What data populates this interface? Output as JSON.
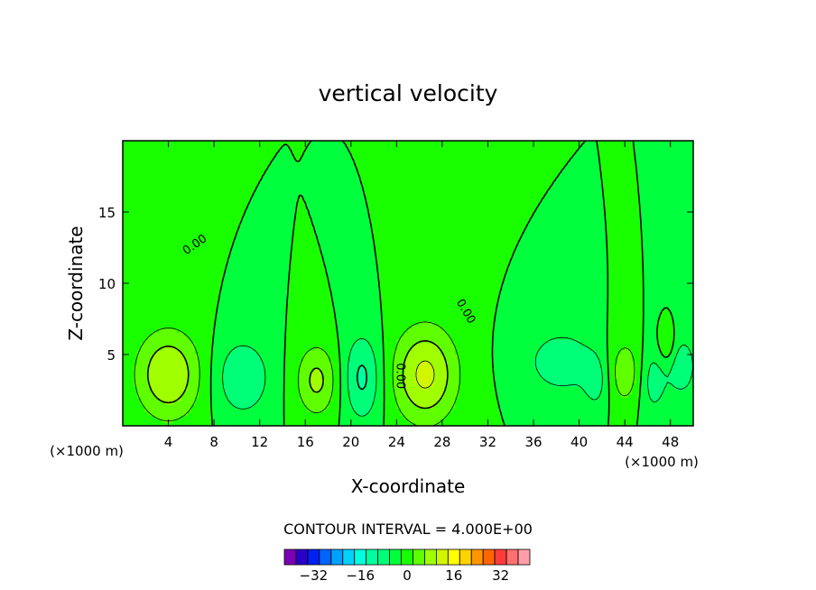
{
  "chart_data": {
    "type": "heatmap",
    "title": "vertical velocity",
    "xlabel": "X-coordinate",
    "ylabel": "Z-coordinate",
    "x_unit_label_left": "(×1000 m)",
    "x_unit_label_right": "(×1000 m)",
    "xlim": [
      0,
      50
    ],
    "ylim": [
      0,
      20
    ],
    "x_ticks": [
      4,
      8,
      12,
      16,
      20,
      24,
      28,
      32,
      36,
      40,
      44,
      48
    ],
    "x_tick_labels": [
      "4",
      "8",
      "12",
      "16",
      "20",
      "24",
      "28",
      "32",
      "36",
      "40",
      "44",
      "48"
    ],
    "y_ticks": [
      5,
      10,
      15
    ],
    "y_tick_labels": [
      "5",
      "10",
      "15"
    ],
    "contour_interval_text": "CONTOUR INTERVAL = 4.000E+00",
    "contour_interval": 4,
    "zero_contour_labels": [
      "0.00",
      "0.00",
      "0.00"
    ],
    "features": [
      {
        "kind": "updraft",
        "x": 4.0,
        "z": 3.6,
        "peak": 12,
        "sx": 2.0,
        "sz": 2.2
      },
      {
        "kind": "downdraft",
        "x": 10.5,
        "z": 3.4,
        "peak": -8,
        "sx": 1.7,
        "sz": 1.9
      },
      {
        "kind": "updraft",
        "x": 17.0,
        "z": 3.2,
        "peak": 9,
        "sx": 1.3,
        "sz": 1.8
      },
      {
        "kind": "downdraft",
        "x": 21.0,
        "z": 3.4,
        "peak": -9,
        "sx": 1.2,
        "sz": 2.2
      },
      {
        "kind": "updraft",
        "x": 26.5,
        "z": 3.6,
        "peak": 13,
        "sx": 2.0,
        "sz": 2.4
      },
      {
        "kind": "downdraft",
        "x": 38.5,
        "z": 4.5,
        "peak": -7,
        "sx": 2.2,
        "sz": 1.6
      },
      {
        "kind": "downdraft",
        "x": 41.5,
        "z": 3.0,
        "peak": -5,
        "sx": 0.8,
        "sz": 1.4
      },
      {
        "kind": "updraft",
        "x": 44.0,
        "z": 3.8,
        "peak": 7,
        "sx": 1.1,
        "sz": 1.7
      },
      {
        "kind": "downdraft",
        "x": 46.5,
        "z": 3.2,
        "peak": -6,
        "sx": 0.9,
        "sz": 1.8
      },
      {
        "kind": "updraft",
        "x": 47.7,
        "z": 5.5,
        "peak": 5,
        "sx": 0.6,
        "sz": 1.0
      },
      {
        "kind": "downdraft",
        "x": 49.0,
        "z": 4.2,
        "peak": -7,
        "sx": 0.9,
        "sz": 1.5
      }
    ],
    "colorbar": {
      "levels": [
        -40,
        -36,
        -32,
        -28,
        -24,
        -20,
        -16,
        -12,
        -8,
        -4,
        0,
        4,
        8,
        12,
        16,
        20,
        24,
        28,
        32,
        36,
        40
      ],
      "colors": [
        "#7a00b4",
        "#2a00c8",
        "#0020f0",
        "#0064ff",
        "#00a0ff",
        "#00d2ff",
        "#00ffdc",
        "#00ffa0",
        "#00ff78",
        "#00ff3c",
        "#1aff00",
        "#60ff00",
        "#a0ff00",
        "#d2f500",
        "#ffff00",
        "#ffd200",
        "#ff9600",
        "#ff6400",
        "#ff3c3c",
        "#ff7070",
        "#ff9ea8"
      ],
      "tick_values": [
        -32,
        -16,
        0,
        16,
        32
      ],
      "tick_labels": [
        "−32",
        "−16",
        "0",
        "16",
        "32"
      ]
    },
    "grid": false,
    "legend": "colorbar-bottom"
  }
}
